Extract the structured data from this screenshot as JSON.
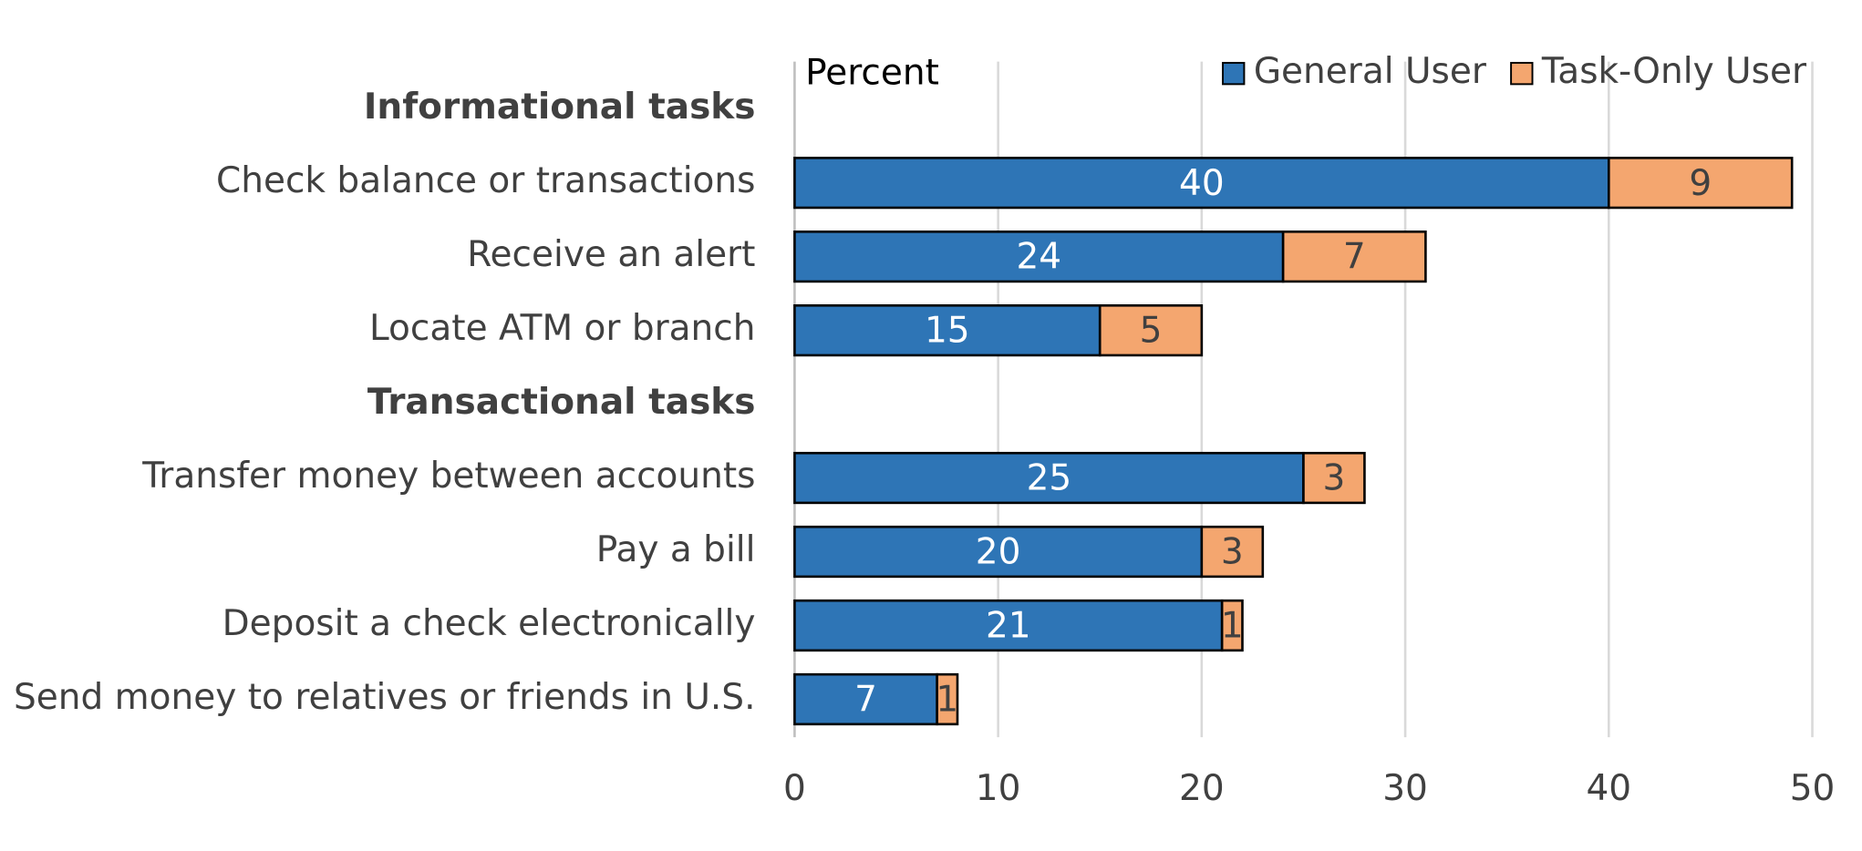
{
  "chart_data": {
    "type": "stacked_barh",
    "xlabel": "Percent",
    "categories": [
      "Informational tasks",
      "Check balance or transactions",
      "Receive an alert ",
      "Locate ATM or branch",
      "Transactional tasks",
      "Transfer money between accounts",
      "Pay a bill",
      "Deposit a check electronically",
      "Send money to relatives or friends in U.S."
    ],
    "series": [
      {
        "name": "General User",
        "color": "#2e75b6",
        "values": [
          null,
          40,
          24,
          15,
          null,
          25,
          20,
          21,
          7
        ]
      },
      {
        "name": "Task-Only User",
        "color": "#f4a66f",
        "values": [
          null,
          9,
          7,
          5,
          null,
          3,
          3,
          1,
          1
        ]
      }
    ],
    "xlim": [
      0,
      50
    ],
    "xticks": [
      0,
      10,
      20,
      30,
      40,
      50
    ],
    "grid": true,
    "legend": "top-right"
  }
}
